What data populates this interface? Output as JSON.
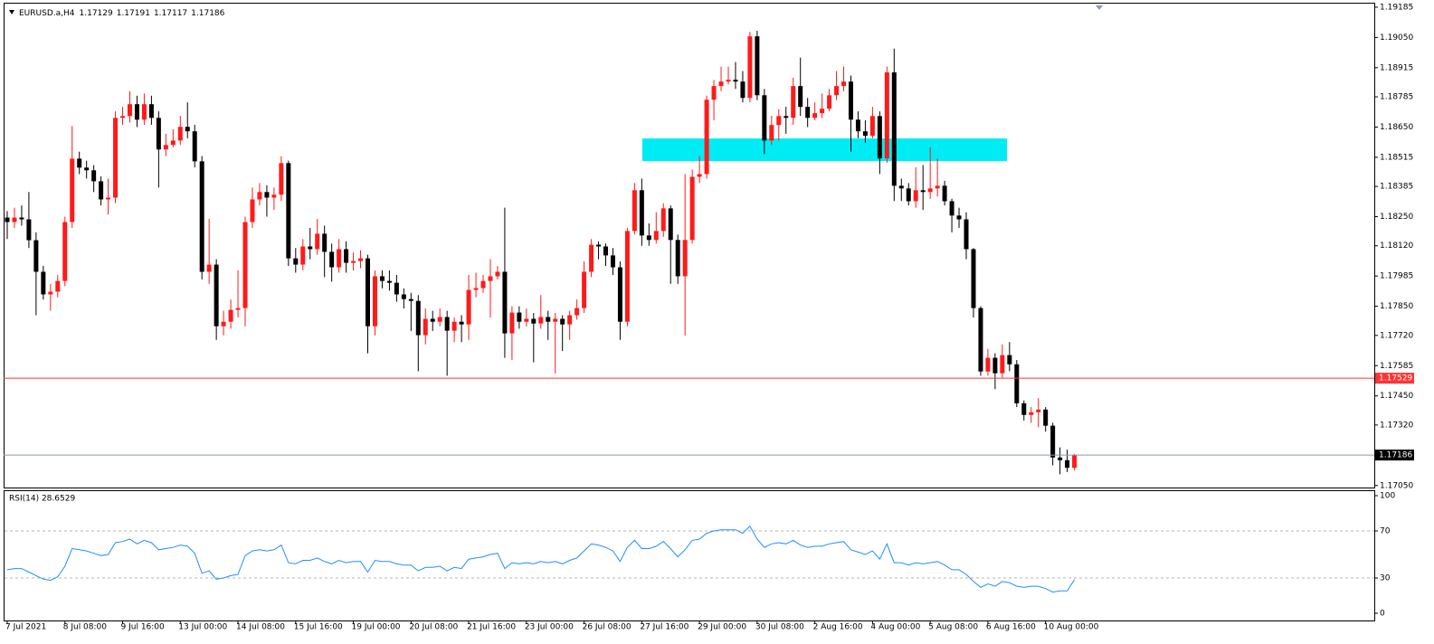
{
  "chart_data": [
    {
      "type": "candlestick",
      "title": "EURUSD.a,H4",
      "colors": {
        "bull": "#ff1a1a",
        "bear": "#000000",
        "zone": "#00ecf5",
        "line": "#ff3333",
        "bid": "#8c9aa8"
      },
      "ylim": [
        1.17041,
        1.19205
      ],
      "yticks": [
        1.19185,
        {
          "value": 1.1905,
          "label": "1.19050"
        },
        1.18915,
        1.18785,
        {
          "value": 1.1865,
          "label": "1.18650"
        },
        1.18515,
        1.18385,
        {
          "value": 1.1825,
          "label": "1.18250"
        },
        {
          "value": 1.1812,
          "label": "1.18120"
        },
        1.17985,
        {
          "value": 1.1785,
          "label": "1.17850"
        },
        {
          "value": 1.1772,
          "label": "1.17720"
        },
        1.17585,
        {
          "value": 1.1745,
          "label": "1.17450"
        },
        {
          "value": 1.1732,
          "label": "1.17320"
        },
        {
          "value": 1.1705,
          "label": "1.17050"
        }
      ],
      "horizontal_line": 1.17529,
      "zone": {
        "low": 1.18498,
        "high": 1.18599
      },
      "categories": [
        "7 Jul 2021",
        null,
        null,
        null,
        null,
        null,
        null,
        null,
        "8 Jul 08:00",
        null,
        null,
        null,
        null,
        null,
        null,
        null,
        "9 Jul 16:00",
        null,
        null,
        null,
        null,
        null,
        null,
        null,
        "13 Jul 00:00",
        null,
        null,
        null,
        null,
        null,
        null,
        null,
        "14 Jul 08:00",
        null,
        null,
        null,
        null,
        null,
        null,
        null,
        "15 Jul 16:00",
        null,
        null,
        null,
        null,
        null,
        null,
        null,
        "19 Jul 00:00",
        null,
        null,
        null,
        null,
        null,
        null,
        null,
        "20 Jul 08:00",
        null,
        null,
        null,
        null,
        null,
        null,
        null,
        "21 Jul 16:00",
        null,
        null,
        null,
        null,
        null,
        null,
        null,
        "23 Jul 00:00",
        null,
        null,
        null,
        null,
        null,
        null,
        null,
        "26 Jul 08:00",
        null,
        null,
        null,
        null,
        null,
        null,
        null,
        "27 Jul 16:00",
        null,
        null,
        null,
        null,
        null,
        null,
        null,
        "29 Jul 00:00",
        null,
        null,
        null,
        null,
        null,
        null,
        null,
        "30 Jul 08:00",
        null,
        null,
        null,
        null,
        null,
        null,
        null,
        "2 Aug 16:00",
        null,
        null,
        null,
        null,
        null,
        null,
        null,
        "4 Aug 00:00",
        null,
        null,
        null,
        null,
        null,
        null,
        null,
        "5 Aug 08:00",
        null,
        null,
        null,
        null,
        null,
        null,
        null,
        "6 Aug 16:00",
        null,
        null,
        null,
        null,
        null,
        null,
        null,
        "10 Aug 00:00",
        null,
        null,
        null,
        null
      ],
      "candles": [
        [
          1.18246,
          1.18275,
          1.1815,
          1.18226
        ],
        [
          1.18226,
          1.1829,
          1.182,
          1.18246
        ],
        [
          1.18246,
          1.183,
          1.1821,
          1.18238
        ],
        [
          1.18238,
          1.1836,
          1.1811,
          1.18145
        ],
        [
          1.18145,
          1.1818,
          1.1781,
          1.18004
        ],
        [
          1.18004,
          1.1803,
          1.1788,
          1.17903
        ],
        [
          1.17903,
          1.1795,
          1.1783,
          1.17915
        ],
        [
          1.17915,
          1.1799,
          1.1789,
          1.17963
        ],
        [
          1.17963,
          1.1825,
          1.1794,
          1.18226
        ],
        [
          1.18226,
          1.18655,
          1.182,
          1.18509
        ],
        [
          1.18509,
          1.1854,
          1.1844,
          1.18469
        ],
        [
          1.18469,
          1.185,
          1.1842,
          1.18457
        ],
        [
          1.18457,
          1.1848,
          1.1836,
          1.18408
        ],
        [
          1.18408,
          1.1843,
          1.183,
          1.18327
        ],
        [
          1.18327,
          1.1842,
          1.1826,
          1.18335
        ],
        [
          1.18335,
          1.1872,
          1.1831,
          1.18691
        ],
        [
          1.18691,
          1.1874,
          1.1866,
          1.18699
        ],
        [
          1.18699,
          1.1881,
          1.1867,
          1.18752
        ],
        [
          1.18752,
          1.1879,
          1.1865,
          1.18683
        ],
        [
          1.18683,
          1.188,
          1.1866,
          1.18752
        ],
        [
          1.18752,
          1.1879,
          1.1866,
          1.18691
        ],
        [
          1.18691,
          1.1872,
          1.1838,
          1.1855
        ],
        [
          1.1855,
          1.1862,
          1.1852,
          1.1857
        ],
        [
          1.1857,
          1.1864,
          1.1856,
          1.1859
        ],
        [
          1.1859,
          1.187,
          1.1857,
          1.18651
        ],
        [
          1.18651,
          1.1876,
          1.186,
          1.18631
        ],
        [
          1.18631,
          1.1866,
          1.1847,
          1.18497
        ],
        [
          1.18497,
          1.1852,
          1.1797,
          1.18004
        ],
        [
          1.18004,
          1.1824,
          1.1795,
          1.18036
        ],
        [
          1.18036,
          1.1806,
          1.177,
          1.17761
        ],
        [
          1.17761,
          1.1783,
          1.1772,
          1.17781
        ],
        [
          1.17781,
          1.1788,
          1.1775,
          1.17834
        ],
        [
          1.17834,
          1.1801,
          1.178,
          1.17842
        ],
        [
          1.17842,
          1.1825,
          1.1776,
          1.18226
        ],
        [
          1.18226,
          1.1838,
          1.182,
          1.18327
        ],
        [
          1.18327,
          1.184,
          1.183,
          1.1836
        ],
        [
          1.1836,
          1.1839,
          1.1825,
          1.18335
        ],
        [
          1.18335,
          1.1838,
          1.1828,
          1.18348
        ],
        [
          1.18348,
          1.1852,
          1.1832,
          1.18489
        ],
        [
          1.18489,
          1.185,
          1.1803,
          1.18064
        ],
        [
          1.18064,
          1.1811,
          1.18,
          1.18036
        ],
        [
          1.18036,
          1.1815,
          1.1801,
          1.18117
        ],
        [
          1.18117,
          1.182,
          1.1806,
          1.18105
        ],
        [
          1.18105,
          1.1824,
          1.1808,
          1.18174
        ],
        [
          1.18174,
          1.1821,
          1.1798,
          1.18093
        ],
        [
          1.18093,
          1.1813,
          1.1796,
          1.18024
        ],
        [
          1.18024,
          1.1815,
          1.18,
          1.18105
        ],
        [
          1.18105,
          1.1814,
          1.18,
          1.18044
        ],
        [
          1.18044,
          1.1809,
          1.1801,
          1.18052
        ],
        [
          1.18052,
          1.181,
          1.1802,
          1.18064
        ],
        [
          1.18064,
          1.1808,
          1.1764,
          1.17761
        ],
        [
          1.17761,
          1.1801,
          1.1772,
          1.17984
        ],
        [
          1.17984,
          1.1801,
          1.1793,
          1.17963
        ],
        [
          1.17963,
          1.1801,
          1.1792,
          1.17955
        ],
        [
          1.17955,
          1.1799,
          1.1787,
          1.17903
        ],
        [
          1.17903,
          1.1793,
          1.1784,
          1.17882
        ],
        [
          1.17882,
          1.1791,
          1.1774,
          1.17874
        ],
        [
          1.17874,
          1.179,
          1.1756,
          1.17721
        ],
        [
          1.17721,
          1.1784,
          1.1768,
          1.17794
        ],
        [
          1.17794,
          1.1783,
          1.1774,
          1.17781
        ],
        [
          1.17781,
          1.1784,
          1.1776,
          1.17802
        ],
        [
          1.17802,
          1.1783,
          1.1754,
          1.17741
        ],
        [
          1.17741,
          1.178,
          1.1769,
          1.17781
        ],
        [
          1.17781,
          1.1781,
          1.1769,
          1.17769
        ],
        [
          1.17769,
          1.1799,
          1.177,
          1.17923
        ],
        [
          1.17923,
          1.18,
          1.1789,
          1.17931
        ],
        [
          1.17931,
          1.1799,
          1.1791,
          1.17963
        ],
        [
          1.17963,
          1.1806,
          1.178,
          1.17984
        ],
        [
          1.17984,
          1.1803,
          1.1797,
          1.18004
        ],
        [
          1.18004,
          1.1829,
          1.1762,
          1.17729
        ],
        [
          1.17729,
          1.1785,
          1.1761,
          1.17822
        ],
        [
          1.17822,
          1.1785,
          1.1775,
          1.17781
        ],
        [
          1.17781,
          1.1784,
          1.1776,
          1.17794
        ],
        [
          1.17794,
          1.1782,
          1.176,
          1.17773
        ],
        [
          1.17773,
          1.179,
          1.1775,
          1.17802
        ],
        [
          1.17802,
          1.1783,
          1.177,
          1.17781
        ],
        [
          1.17781,
          1.1782,
          1.1755,
          1.17794
        ],
        [
          1.17794,
          1.1781,
          1.1765,
          1.17769
        ],
        [
          1.17769,
          1.1783,
          1.177,
          1.1781
        ],
        [
          1.1781,
          1.1788,
          1.1779,
          1.17842
        ],
        [
          1.17842,
          1.1805,
          1.1782,
          1.18004
        ],
        [
          1.18004,
          1.1815,
          1.1798,
          1.18125
        ],
        [
          1.18125,
          1.1814,
          1.1806,
          1.18117
        ],
        [
          1.18117,
          1.1813,
          1.1803,
          1.18077
        ],
        [
          1.18077,
          1.1811,
          1.1799,
          1.18024
        ],
        [
          1.18024,
          1.1805,
          1.177,
          1.17781
        ],
        [
          1.17781,
          1.182,
          1.1776,
          1.18186
        ],
        [
          1.18186,
          1.184,
          1.1817,
          1.18368
        ],
        [
          1.18368,
          1.1842,
          1.1812,
          1.18166
        ],
        [
          1.18166,
          1.1822,
          1.1812,
          1.18146
        ],
        [
          1.18146,
          1.1827,
          1.1813,
          1.18186
        ],
        [
          1.18186,
          1.1831,
          1.1816,
          1.18287
        ],
        [
          1.18287,
          1.183,
          1.1795,
          1.18146
        ],
        [
          1.18146,
          1.1817,
          1.1795,
          1.17984
        ],
        [
          1.17984,
          1.1844,
          1.1772,
          1.18146
        ],
        [
          1.18146,
          1.1846,
          1.1813,
          1.18428
        ],
        [
          1.18428,
          1.1852,
          1.184,
          1.1844
        ],
        [
          1.1844,
          1.1879,
          1.1842,
          1.18772
        ],
        [
          1.18772,
          1.1886,
          1.1868,
          1.18833
        ],
        [
          1.18833,
          1.1892,
          1.1881,
          1.18853
        ],
        [
          1.18853,
          1.1892,
          1.1884,
          1.18861
        ],
        [
          1.18861,
          1.1894,
          1.1882,
          1.18853
        ],
        [
          1.18853,
          1.189,
          1.1876,
          1.1878
        ],
        [
          1.1878,
          1.19075,
          1.1876,
          1.19055
        ],
        [
          1.19055,
          1.1908,
          1.1877,
          1.18792
        ],
        [
          1.18792,
          1.1882,
          1.1853,
          1.1859
        ],
        [
          1.1859,
          1.187,
          1.1857,
          1.18659
        ],
        [
          1.18659,
          1.1873,
          1.1859,
          1.18699
        ],
        [
          1.18699,
          1.1874,
          1.1862,
          1.18691
        ],
        [
          1.18691,
          1.1887,
          1.1866,
          1.18833
        ],
        [
          1.18833,
          1.1896,
          1.187,
          1.1874
        ],
        [
          1.1874,
          1.1878,
          1.1865,
          1.18691
        ],
        [
          1.18691,
          1.1876,
          1.1868,
          1.18712
        ],
        [
          1.18712,
          1.188,
          1.1869,
          1.18732
        ],
        [
          1.18732,
          1.1882,
          1.1872,
          1.18792
        ],
        [
          1.18792,
          1.189,
          1.1877,
          1.18833
        ],
        [
          1.18833,
          1.1892,
          1.1881,
          1.18853
        ],
        [
          1.18853,
          1.1888,
          1.1854,
          1.18683
        ],
        [
          1.18683,
          1.1872,
          1.186,
          1.18631
        ],
        [
          1.18631,
          1.1868,
          1.1858,
          1.18611
        ],
        [
          1.18611,
          1.1874,
          1.186,
          1.18699
        ],
        [
          1.18699,
          1.1872,
          1.1844,
          1.1851
        ],
        [
          1.1851,
          1.1892,
          1.1849,
          1.18894
        ],
        [
          1.18894,
          1.19,
          1.1832,
          1.18388
        ],
        [
          1.18388,
          1.1842,
          1.1832,
          1.18376
        ],
        [
          1.18376,
          1.184,
          1.183,
          1.18319
        ],
        [
          1.18319,
          1.1847,
          1.1829,
          1.18368
        ],
        [
          1.18368,
          1.1848,
          1.1828,
          1.1836
        ],
        [
          1.1836,
          1.1856,
          1.1833,
          1.18376
        ],
        [
          1.18376,
          1.1851,
          1.1834,
          1.18388
        ],
        [
          1.18388,
          1.1841,
          1.183,
          1.18319
        ],
        [
          1.18319,
          1.1833,
          1.1818,
          1.18255
        ],
        [
          1.18255,
          1.1829,
          1.182,
          1.18238
        ],
        [
          1.18238,
          1.1827,
          1.1806,
          1.18105
        ],
        [
          1.18105,
          1.1811,
          1.178,
          1.17842
        ],
        [
          1.17842,
          1.1785,
          1.1754,
          1.17559
        ],
        [
          1.17559,
          1.1766,
          1.1754,
          1.1762
        ],
        [
          1.1762,
          1.1764,
          1.1748,
          1.17551
        ],
        [
          1.17551,
          1.1768,
          1.1753,
          1.17632
        ],
        [
          1.17632,
          1.1769,
          1.1756,
          1.17591
        ],
        [
          1.17591,
          1.1761,
          1.174,
          1.17417
        ],
        [
          1.17417,
          1.1743,
          1.1734,
          1.17365
        ],
        [
          1.17365,
          1.174,
          1.1733,
          1.17377
        ],
        [
          1.17377,
          1.1744,
          1.1731,
          1.17389
        ],
        [
          1.17389,
          1.174,
          1.1729,
          1.17317
        ],
        [
          1.17317,
          1.1733,
          1.1714,
          1.17175
        ],
        [
          1.17175,
          1.1722,
          1.171,
          1.17163
        ],
        [
          1.17163,
          1.1721,
          1.1711,
          1.17129
        ],
        [
          1.17129,
          1.17191,
          1.17117,
          1.17186
        ]
      ]
    },
    {
      "type": "line",
      "title": "RSI(14) 28.6529",
      "color": "#1e90ff",
      "ylim": [
        0,
        100
      ],
      "yticks": [
        100,
        70,
        30,
        0
      ],
      "levels": [
        70,
        30
      ],
      "values": [
        37,
        38,
        38,
        35,
        32,
        29,
        28,
        31,
        40,
        55,
        54,
        53,
        51,
        49,
        50,
        60,
        61,
        63,
        59,
        62,
        60,
        54,
        55,
        56,
        58,
        57,
        51,
        34,
        36,
        29,
        30,
        32,
        33,
        49,
        53,
        54,
        53,
        54,
        58,
        43,
        42,
        45,
        45,
        47,
        44,
        42,
        45,
        43,
        44,
        44,
        35,
        45,
        44,
        44,
        42,
        41,
        41,
        36,
        39,
        39,
        40,
        36,
        39,
        38,
        46,
        47,
        48,
        50,
        51,
        38,
        43,
        42,
        43,
        42,
        44,
        43,
        44,
        42,
        45,
        47,
        53,
        59,
        58,
        56,
        53,
        44,
        56,
        62,
        55,
        55,
        57,
        61,
        55,
        48,
        54,
        62,
        63,
        68,
        70,
        71,
        71,
        71,
        68,
        74,
        63,
        56,
        59,
        60,
        59,
        62,
        58,
        56,
        57,
        57,
        59,
        60,
        61,
        54,
        52,
        50,
        53,
        46,
        59,
        43,
        43,
        41,
        43,
        42,
        43,
        44,
        41,
        37,
        37,
        33,
        27,
        22,
        25,
        23,
        27,
        26,
        23,
        22,
        23,
        23,
        21,
        18,
        19,
        19,
        28.6529
      ]
    }
  ]
}
